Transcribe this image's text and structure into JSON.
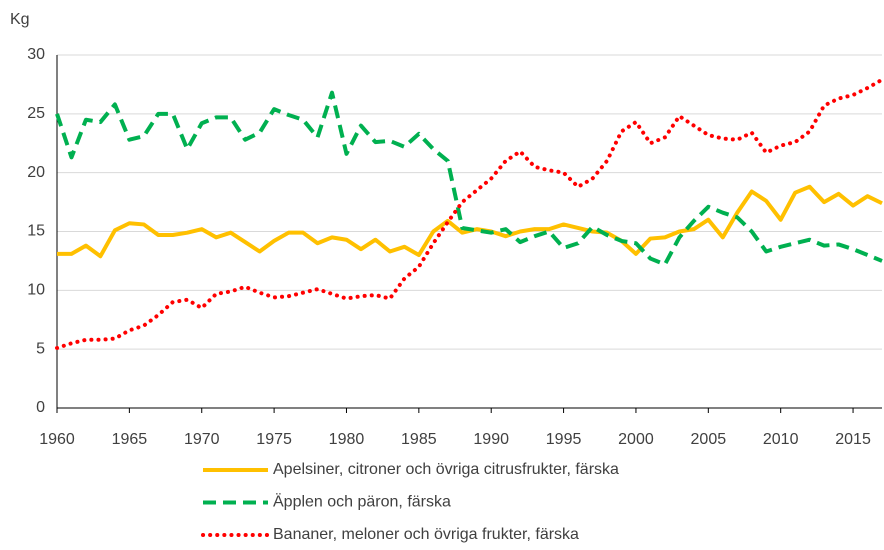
{
  "chart_data": {
    "type": "line",
    "y_label": "Kg",
    "x": [
      1960,
      1961,
      1962,
      1963,
      1964,
      1965,
      1966,
      1967,
      1968,
      1969,
      1970,
      1971,
      1972,
      1973,
      1974,
      1975,
      1976,
      1977,
      1978,
      1979,
      1980,
      1981,
      1982,
      1983,
      1984,
      1985,
      1986,
      1987,
      1988,
      1989,
      1990,
      1991,
      1992,
      1993,
      1994,
      1995,
      1996,
      1997,
      1998,
      1999,
      2000,
      2001,
      2002,
      2003,
      2004,
      2005,
      2006,
      2007,
      2008,
      2009,
      2010,
      2011,
      2012,
      2013,
      2014,
      2015,
      2016,
      2017
    ],
    "series": [
      {
        "name": "Apelsiner, citroner och övriga citrusfrukter, färska",
        "color": "#FFC000",
        "dash": "solid",
        "values": [
          13.1,
          13.1,
          13.8,
          12.9,
          15.1,
          15.7,
          15.6,
          14.7,
          14.7,
          14.9,
          15.2,
          14.5,
          14.9,
          14.1,
          13.3,
          14.2,
          14.9,
          14.9,
          14.0,
          14.5,
          14.3,
          13.5,
          14.3,
          13.3,
          13.7,
          13.0,
          15.0,
          15.9,
          14.9,
          15.2,
          15.0,
          14.6,
          15.0,
          15.2,
          15.2,
          15.6,
          15.3,
          15.0,
          14.9,
          14.2,
          13.1,
          14.4,
          14.5,
          15.0,
          15.2,
          16.0,
          14.5,
          16.6,
          18.4,
          17.6,
          16.0,
          18.3,
          18.8,
          17.5,
          18.2,
          17.2,
          18.0,
          17.4
        ]
      },
      {
        "name": "Äpplen och päron, färska",
        "color": "#00B050",
        "dash": "dashed",
        "values": [
          25.0,
          21.3,
          24.5,
          24.3,
          25.8,
          22.8,
          23.1,
          25.0,
          25.0,
          22.0,
          24.2,
          24.7,
          24.7,
          22.8,
          23.4,
          25.4,
          24.9,
          24.5,
          23.0,
          26.8,
          21.6,
          24.0,
          22.6,
          22.7,
          22.2,
          23.3,
          22.0,
          21.0,
          15.3,
          15.1,
          14.9,
          15.2,
          14.1,
          14.6,
          15.0,
          13.6,
          14.0,
          15.4,
          14.7,
          14.2,
          14.0,
          12.7,
          12.2,
          14.5,
          15.9,
          17.1,
          16.6,
          16.2,
          15.0,
          13.3,
          13.7,
          14.0,
          14.3,
          13.8,
          13.9,
          13.5,
          13.0,
          12.5
        ]
      },
      {
        "name": "Bananer, meloner och övriga frukter, färska",
        "color": "#FF0000",
        "dash": "dotted",
        "values": [
          5.1,
          5.5,
          5.8,
          5.8,
          5.9,
          6.6,
          7.0,
          7.9,
          9.0,
          9.2,
          8.5,
          9.7,
          9.9,
          10.3,
          9.8,
          9.4,
          9.5,
          9.8,
          10.1,
          9.7,
          9.3,
          9.5,
          9.6,
          9.3,
          11.0,
          12.0,
          14.0,
          15.8,
          17.5,
          18.5,
          19.5,
          21.0,
          21.8,
          20.5,
          20.2,
          20.0,
          18.8,
          19.5,
          21.0,
          23.5,
          24.3,
          22.5,
          23.0,
          24.8,
          24.0,
          23.2,
          22.9,
          22.8,
          23.4,
          21.7,
          22.3,
          22.6,
          23.5,
          25.7,
          26.3,
          26.6,
          27.2,
          27.9
        ]
      }
    ],
    "xlim": [
      1960,
      2017
    ],
    "xticks": [
      1960,
      1965,
      1970,
      1975,
      1980,
      1985,
      1990,
      1995,
      2000,
      2005,
      2010,
      2015
    ],
    "ylim": [
      0,
      30
    ],
    "yticks": [
      0,
      5,
      10,
      15,
      20,
      25,
      30
    ],
    "grid": true,
    "legend": "bottom"
  }
}
